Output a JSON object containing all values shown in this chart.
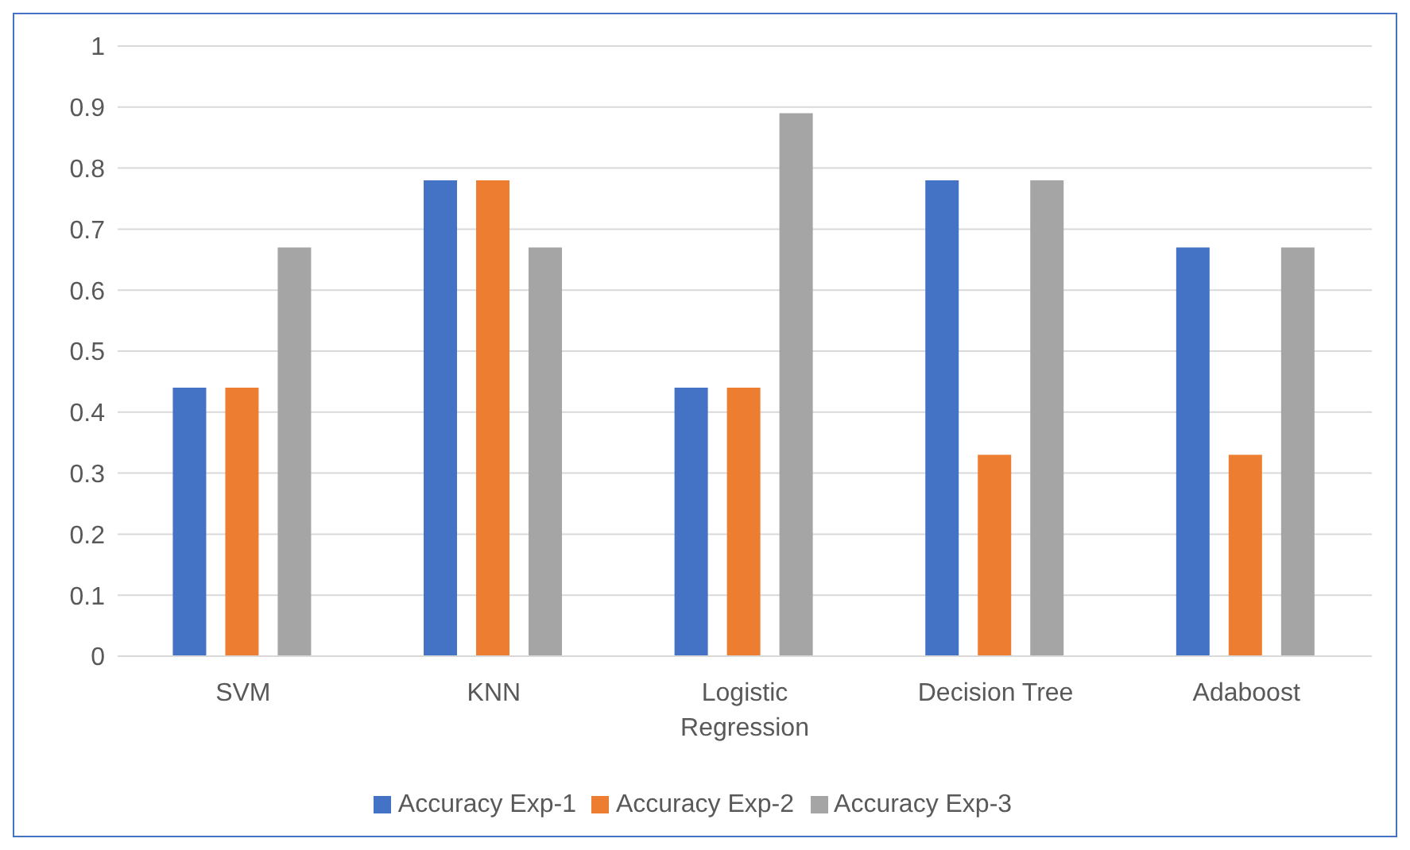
{
  "chart_data": {
    "type": "bar",
    "categories": [
      "SVM",
      "KNN",
      "Logistic Regression",
      "Decision Tree",
      "Adaboost"
    ],
    "series": [
      {
        "name": "Accuracy Exp-1",
        "color": "#4472c4",
        "values": [
          0.44,
          0.78,
          0.44,
          0.78,
          0.67
        ]
      },
      {
        "name": "Accuracy Exp-2",
        "color": "#ed7d31",
        "values": [
          0.44,
          0.78,
          0.44,
          0.33,
          0.33
        ]
      },
      {
        "name": "Accuracy Exp-3",
        "color": "#a5a5a5",
        "values": [
          0.67,
          0.67,
          0.89,
          0.78,
          0.67
        ]
      }
    ],
    "ylim": [
      0,
      1
    ],
    "yticks": [
      0,
      0.1,
      0.2,
      0.3,
      0.4,
      0.5,
      0.6,
      0.7,
      0.8,
      0.9,
      1
    ],
    "grid": "y",
    "legend": "bottom"
  }
}
